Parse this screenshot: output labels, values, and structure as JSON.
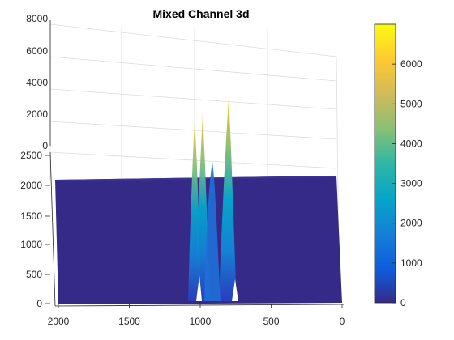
{
  "chart_data": {
    "type": "surface",
    "title": "Mixed Channel 3d",
    "xlabel": "",
    "ylabel": "",
    "zlabel": "",
    "colormap": "parula",
    "x_axis": {
      "range": [
        0,
        2000
      ],
      "direction": "reversed",
      "ticks": [
        2000,
        1500,
        1000,
        500,
        0
      ],
      "tick_labels": [
        "2000",
        "1500",
        "1000",
        "500",
        "0"
      ]
    },
    "y_axis": {
      "range": [
        0,
        2500
      ],
      "ticks": [
        0,
        500,
        1000,
        1500,
        2000,
        2500
      ],
      "tick_labels": [
        "0",
        "500",
        "1000",
        "1500",
        "2000",
        "2500"
      ]
    },
    "z_axis": {
      "range": [
        0,
        8000
      ],
      "ticks": [
        0,
        2000,
        4000,
        6000,
        8000
      ],
      "tick_labels": [
        "0",
        "2000",
        "4000",
        "6000",
        "8000"
      ]
    },
    "colorbar": {
      "range": [
        0,
        7000
      ],
      "ticks": [
        0,
        1000,
        2000,
        3000,
        4000,
        5000,
        6000
      ],
      "tick_labels": [
        "0",
        "1000",
        "2000",
        "3000",
        "4000",
        "5000",
        "6000"
      ]
    },
    "grid": true,
    "peaks": [
      {
        "x": 1040,
        "z": 5300
      },
      {
        "x": 1000,
        "z": 5600
      },
      {
        "x": 780,
        "z": 7000
      },
      {
        "x": 900,
        "z": 2500
      }
    ],
    "baseline_z": 0
  },
  "colors": {
    "parula": [
      "#352a87",
      "#0f5cdd",
      "#1481d6",
      "#06a4ca",
      "#2eb7a4",
      "#87bf77",
      "#d1bb59",
      "#fec832",
      "#f9fb0e"
    ],
    "grid": "#dcdcdc",
    "axis": "#262626"
  }
}
